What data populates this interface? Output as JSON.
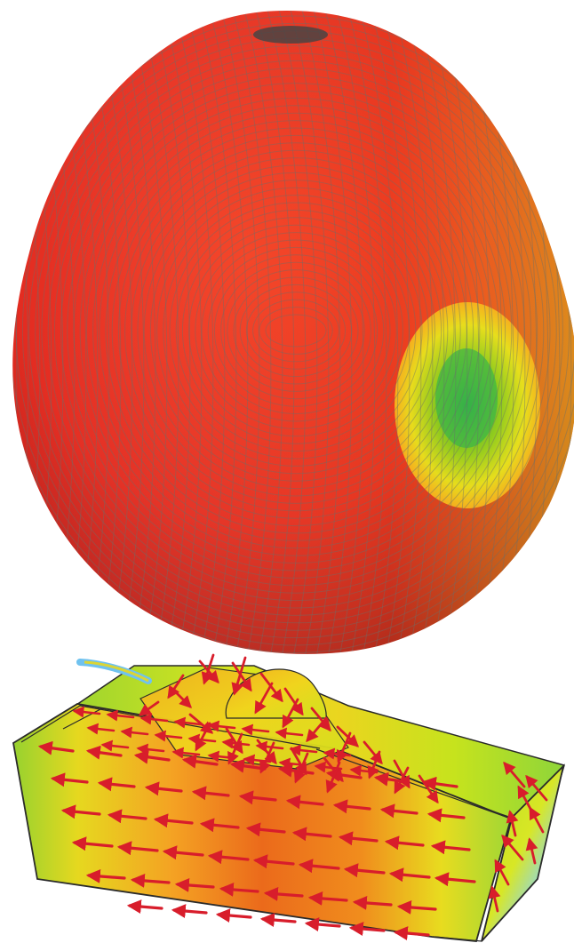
{
  "figure": {
    "radiation_pattern": {
      "shape": "ellipsoid-with-dimple",
      "mesh": "gray-wireframe",
      "colormap": [
        "#d71f1b",
        "#ea5a1a",
        "#f4a124",
        "#f4e01f",
        "#b8e31c",
        "#4dbb3a"
      ],
      "highlight_color": "#d2e81d"
    },
    "vehicle_model": {
      "shape": "tank-like-block",
      "surface_colors": [
        "#8fce2e",
        "#d5e61c",
        "#f1b320",
        "#e56a19",
        "#79c7e9"
      ],
      "arrow_color": "#d81d2b",
      "edge_color": "#2a2a2a"
    }
  }
}
